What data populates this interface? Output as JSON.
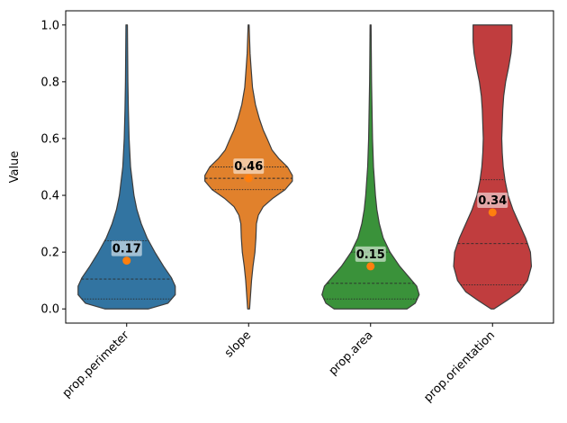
{
  "chart_data": {
    "type": "violin",
    "title": "",
    "xlabel": "",
    "ylabel": "Value",
    "ylim": [
      -0.05,
      1.05
    ],
    "yticks": [
      0.0,
      0.2,
      0.4,
      0.6,
      0.8,
      1.0
    ],
    "ytick_labels": [
      "0.0",
      "0.2",
      "0.4",
      "0.6",
      "0.8",
      "1.0"
    ],
    "categories": [
      "prop.perimeter",
      "slope",
      "prop.area",
      "prop.orientation"
    ],
    "mean_marker_color": "#ff7f0e",
    "series": [
      {
        "category": "prop.perimeter",
        "color": "#3274a1",
        "mean": 0.17,
        "mean_label": "0.17",
        "min": 0.0,
        "max": 1.0,
        "quartiles": [
          0.035,
          0.105,
          0.24
        ],
        "density": [
          [
            0.0,
            0.45
          ],
          [
            0.02,
            0.85
          ],
          [
            0.05,
            1.0
          ],
          [
            0.08,
            1.0
          ],
          [
            0.11,
            0.92
          ],
          [
            0.15,
            0.76
          ],
          [
            0.2,
            0.58
          ],
          [
            0.25,
            0.42
          ],
          [
            0.3,
            0.3
          ],
          [
            0.35,
            0.21
          ],
          [
            0.4,
            0.15
          ],
          [
            0.5,
            0.08
          ],
          [
            0.6,
            0.05
          ],
          [
            0.7,
            0.035
          ],
          [
            0.8,
            0.025
          ],
          [
            0.9,
            0.02
          ],
          [
            1.0,
            0.015
          ]
        ]
      },
      {
        "category": "slope",
        "color": "#e1812c",
        "mean": 0.46,
        "mean_label": "0.46",
        "min": 0.0,
        "max": 1.0,
        "quartiles": [
          0.42,
          0.46,
          0.5
        ],
        "density": [
          [
            0.0,
            0.02
          ],
          [
            0.05,
            0.04
          ],
          [
            0.1,
            0.06
          ],
          [
            0.15,
            0.09
          ],
          [
            0.2,
            0.13
          ],
          [
            0.25,
            0.15
          ],
          [
            0.3,
            0.16
          ],
          [
            0.33,
            0.2
          ],
          [
            0.36,
            0.3
          ],
          [
            0.39,
            0.5
          ],
          [
            0.42,
            0.75
          ],
          [
            0.45,
            0.9
          ],
          [
            0.47,
            0.9
          ],
          [
            0.5,
            0.8
          ],
          [
            0.53,
            0.62
          ],
          [
            0.56,
            0.48
          ],
          [
            0.6,
            0.38
          ],
          [
            0.63,
            0.3
          ],
          [
            0.67,
            0.22
          ],
          [
            0.72,
            0.14
          ],
          [
            0.78,
            0.08
          ],
          [
            0.85,
            0.05
          ],
          [
            0.9,
            0.03
          ],
          [
            0.95,
            0.02
          ],
          [
            1.0,
            0.01
          ]
        ]
      },
      {
        "category": "prop.area",
        "color": "#3a923a",
        "mean": 0.15,
        "mean_label": "0.15",
        "min": 0.0,
        "max": 1.0,
        "quartiles": [
          0.035,
          0.09,
          0.2
        ],
        "density": [
          [
            0.0,
            0.75
          ],
          [
            0.02,
            0.92
          ],
          [
            0.05,
            1.0
          ],
          [
            0.08,
            0.95
          ],
          [
            0.11,
            0.8
          ],
          [
            0.15,
            0.6
          ],
          [
            0.2,
            0.4
          ],
          [
            0.25,
            0.26
          ],
          [
            0.3,
            0.18
          ],
          [
            0.35,
            0.13
          ],
          [
            0.4,
            0.1
          ],
          [
            0.5,
            0.06
          ],
          [
            0.6,
            0.04
          ],
          [
            0.7,
            0.03
          ],
          [
            0.8,
            0.02
          ],
          [
            0.9,
            0.015
          ],
          [
            1.0,
            0.01
          ]
        ]
      },
      {
        "category": "prop.orientation",
        "color": "#c03d3e",
        "mean": 0.34,
        "mean_label": "0.34",
        "min": 0.0,
        "max": 1.0,
        "quartiles": [
          0.085,
          0.23,
          0.455
        ],
        "density": [
          [
            0.0,
            0.03
          ],
          [
            0.03,
            0.3
          ],
          [
            0.06,
            0.55
          ],
          [
            0.1,
            0.72
          ],
          [
            0.15,
            0.8
          ],
          [
            0.2,
            0.78
          ],
          [
            0.25,
            0.68
          ],
          [
            0.3,
            0.55
          ],
          [
            0.35,
            0.42
          ],
          [
            0.4,
            0.32
          ],
          [
            0.45,
            0.26
          ],
          [
            0.5,
            0.22
          ],
          [
            0.55,
            0.2
          ],
          [
            0.6,
            0.19
          ],
          [
            0.65,
            0.2
          ],
          [
            0.7,
            0.21
          ],
          [
            0.75,
            0.23
          ],
          [
            0.8,
            0.27
          ],
          [
            0.85,
            0.33
          ],
          [
            0.9,
            0.38
          ],
          [
            0.94,
            0.4
          ],
          [
            0.97,
            0.4
          ],
          [
            1.0,
            0.4
          ]
        ]
      }
    ]
  }
}
